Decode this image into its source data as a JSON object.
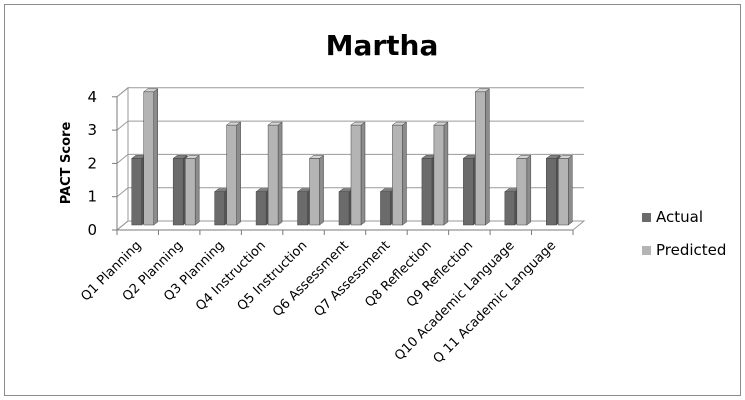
{
  "chart_data": {
    "type": "bar",
    "title": "Martha",
    "xlabel": "",
    "ylabel": "PACT Score",
    "ylim": [
      0,
      4
    ],
    "yticks": [
      0,
      1,
      2,
      3,
      4
    ],
    "grid": true,
    "style": "3d-clustered-column",
    "legend_position": "right",
    "categories": [
      "Q1 Planning",
      "Q2 Planning",
      "Q3 Planning",
      "Q4 Instruction",
      "Q5 Instruction",
      "Q6 Assessment",
      "Q7 Assessment",
      "Q8 Reflection",
      "Q9 Reflection",
      "Q10 Academic Language",
      "Q 11 Academic Language"
    ],
    "series": [
      {
        "name": "Actual",
        "color": "#6b6b6b",
        "values": [
          2,
          2,
          1,
          1,
          1,
          1,
          1,
          2,
          2,
          1,
          2
        ]
      },
      {
        "name": "Predicted",
        "color": "#b4b4b4",
        "values": [
          4,
          2,
          3,
          3,
          2,
          3,
          3,
          3,
          4,
          2,
          2
        ]
      }
    ]
  }
}
